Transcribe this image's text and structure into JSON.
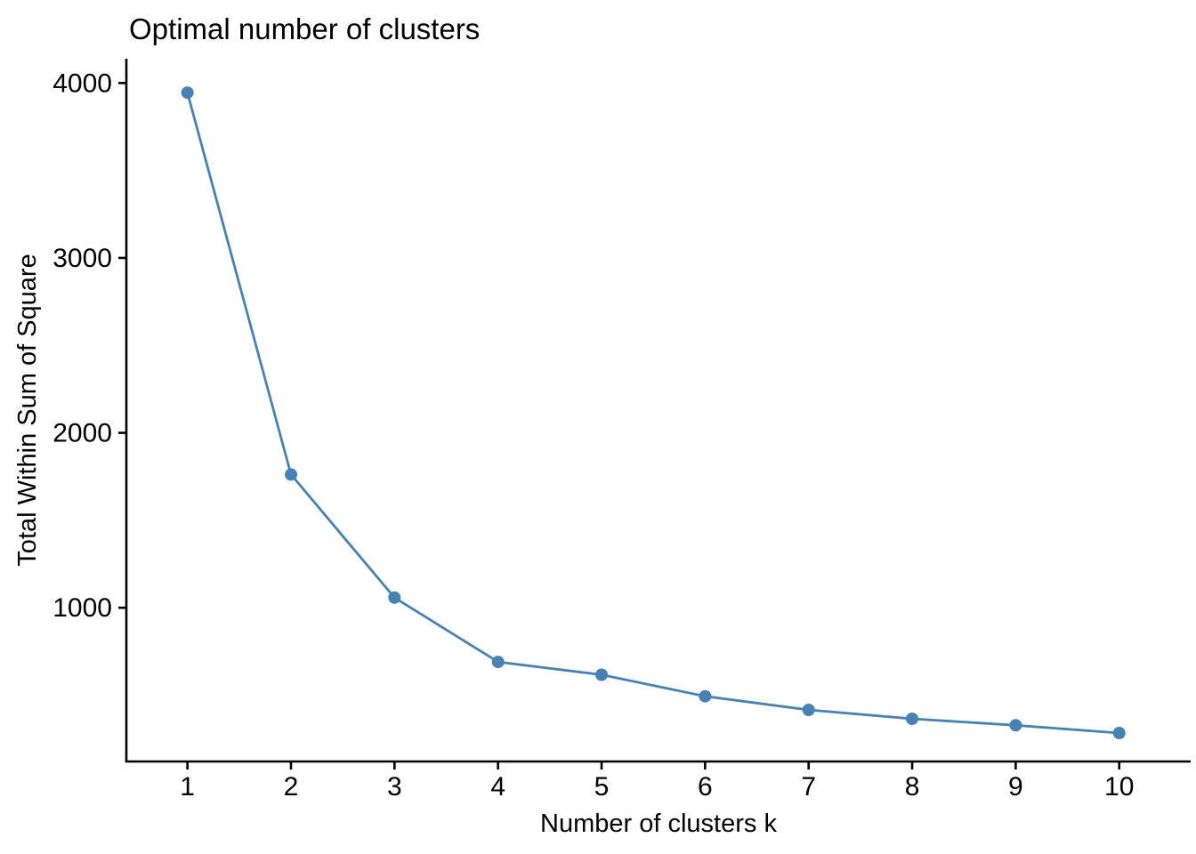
{
  "figure": {
    "kind": "elbow-method-plot"
  },
  "chart_data": {
    "type": "line",
    "title": "Optimal number of clusters",
    "xlabel": "Number of clusters k",
    "ylabel": "Total Within Sum of Square",
    "x": [
      1,
      2,
      3,
      4,
      5,
      6,
      7,
      8,
      9,
      10
    ],
    "values": [
      3945,
      1762,
      1058,
      690,
      617,
      494,
      416,
      365,
      328,
      284
    ],
    "x_tick_labels": [
      "1",
      "2",
      "3",
      "4",
      "5",
      "6",
      "7",
      "8",
      "9",
      "10"
    ],
    "y_ticks": [
      4000,
      3000,
      2000,
      1000
    ],
    "xlim": [
      0.41,
      10.69
    ],
    "ylim": [
      121,
      4139
    ],
    "grid": false,
    "legend": "none",
    "line_color": "#4682B4",
    "marker": "circle",
    "marker_radius": 7,
    "axis_color": "#000000",
    "background_color": "#FFFFFF"
  }
}
